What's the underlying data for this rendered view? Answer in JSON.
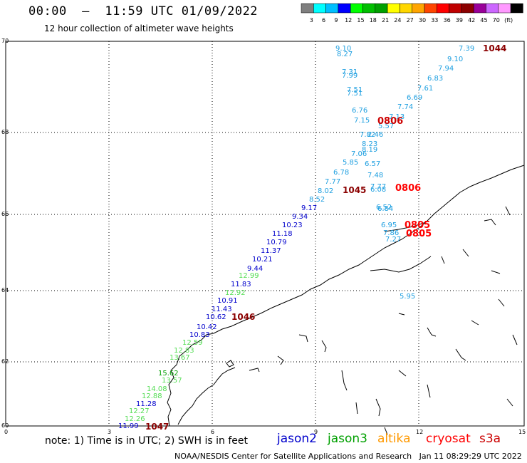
{
  "header": {
    "title": "00:00  –  11:59 UTC 01/09/2022",
    "subtitle": "12 hour collection of altimeter wave heights"
  },
  "legend": {
    "colors": [
      "#7f7f7f",
      "#00ffff",
      "#00bfff",
      "#0000ff",
      "#00ff00",
      "#00bf00",
      "#00a000",
      "#ffff00",
      "#ffd700",
      "#ffa500",
      "#ff4500",
      "#ff0000",
      "#bf0000",
      "#8b0000",
      "#990099",
      "#cc66ff",
      "#ff99ff",
      "#000000"
    ],
    "labels": [
      "3",
      "6",
      "9",
      "12",
      "15",
      "18",
      "21",
      "24",
      "27",
      "30",
      "33",
      "36",
      "39",
      "42",
      "45",
      "70",
      "(ft)"
    ]
  },
  "axes": {
    "lat_labels": [
      "70",
      "68",
      "66",
      "64",
      "62",
      "60"
    ],
    "lon_labels": [
      "0",
      "3",
      "6",
      "9",
      "12",
      "15"
    ]
  },
  "footer": {
    "note": "note:  1) Time is in UTC;  2) SWH is in feet",
    "satellites": [
      {
        "name": "jason2",
        "color": "#0000cc"
      },
      {
        "name": "jason3",
        "color": "#00a000"
      },
      {
        "name": "altika",
        "color": "#ff9900"
      },
      {
        "name": "cryosat",
        "color": "#ff0000"
      },
      {
        "name": "s3a",
        "color": "#cc0000"
      }
    ],
    "credit": "NOAA/NESDIS Center for Satellite Applications and Research   Jan 11 08:29:29 UTC 2022"
  },
  "observations": [
    {
      "text": "9.10",
      "color": "#1e9fe0"
    },
    {
      "text": "8.27",
      "color": "#1e9fe0"
    },
    {
      "text": "7.31",
      "color": "#1e9fe0"
    },
    {
      "text": "7.99",
      "color": "#1e9fe0"
    },
    {
      "text": "7.51",
      "color": "#1e9fe0"
    },
    {
      "text": "7.51",
      "color": "#1e9fe0"
    },
    {
      "text": "6.76",
      "color": "#1e9fe0"
    },
    {
      "text": "7.15",
      "color": "#1e9fe0"
    },
    {
      "text": "7.82",
      "color": "#1e9fe0"
    },
    {
      "text": "2.46",
      "color": "#1e9fe0"
    },
    {
      "text": "8.23",
      "color": "#1e9fe0"
    },
    {
      "text": "8.19",
      "color": "#1e9fe0"
    },
    {
      "text": "7.06",
      "color": "#1e9fe0"
    },
    {
      "text": "5.85",
      "color": "#1e9fe0"
    },
    {
      "text": "6.57",
      "color": "#1e9fe0"
    },
    {
      "text": "6.78",
      "color": "#1e9fe0"
    },
    {
      "text": "7.77",
      "color": "#1e9fe0"
    },
    {
      "text": "7.48",
      "color": "#1e9fe0"
    },
    {
      "text": "8.02",
      "color": "#1e9fe0"
    },
    {
      "text": "7.77",
      "color": "#1e9fe0"
    },
    {
      "text": "6.08",
      "color": "#1e9fe0"
    },
    {
      "text": "8.52",
      "color": "#1e9fe0"
    },
    {
      "text": "6.52",
      "color": "#1e9fe0"
    },
    {
      "text": "9.17",
      "color": "#0000cc"
    },
    {
      "text": "9.34",
      "color": "#0000cc"
    },
    {
      "text": "10.23",
      "color": "#0000cc"
    },
    {
      "text": "11.18",
      "color": "#0000cc"
    },
    {
      "text": "10.79",
      "color": "#0000cc"
    },
    {
      "text": "11.37",
      "color": "#0000cc"
    },
    {
      "text": "10.21",
      "color": "#0000cc"
    },
    {
      "text": "9.44",
      "color": "#0000cc"
    },
    {
      "text": "12.99",
      "color": "#55dd55"
    },
    {
      "text": "11.83",
      "color": "#0000cc"
    },
    {
      "text": "12.92",
      "color": "#55dd55"
    },
    {
      "text": "10.91",
      "color": "#0000cc"
    },
    {
      "text": "11.43",
      "color": "#0000cc"
    },
    {
      "text": "10.62",
      "color": "#0000cc"
    },
    {
      "text": "10.42",
      "color": "#0000cc"
    },
    {
      "text": "10.83",
      "color": "#0000cc"
    },
    {
      "text": "12.59",
      "color": "#55dd55"
    },
    {
      "text": "12.83",
      "color": "#55dd55"
    },
    {
      "text": "13.67",
      "color": "#55dd55"
    },
    {
      "text": "15.62",
      "color": "#00a000"
    },
    {
      "text": "13.57",
      "color": "#55dd55"
    },
    {
      "text": "14.08",
      "color": "#55dd55"
    },
    {
      "text": "12.88",
      "color": "#55dd55"
    },
    {
      "text": "11.28",
      "color": "#0000cc"
    },
    {
      "text": "12.27",
      "color": "#55dd55"
    },
    {
      "text": "12.26",
      "color": "#55dd55"
    },
    {
      "text": "11.99",
      "color": "#0000cc"
    },
    {
      "text": "9.10",
      "color": "#1e9fe0"
    },
    {
      "text": "7.39",
      "color": "#1e9fe0"
    },
    {
      "text": "7.94",
      "color": "#1e9fe0"
    },
    {
      "text": "6.83",
      "color": "#1e9fe0"
    },
    {
      "text": "7.61",
      "color": "#1e9fe0"
    },
    {
      "text": "6.69",
      "color": "#1e9fe0"
    },
    {
      "text": "7.74",
      "color": "#1e9fe0"
    },
    {
      "text": "7.13",
      "color": "#1e9fe0"
    },
    {
      "text": "5.57",
      "color": "#1e9fe0"
    },
    {
      "text": "6.95",
      "color": "#1e9fe0"
    },
    {
      "text": "7.86",
      "color": "#1e9fe0"
    },
    {
      "text": "7.27",
      "color": "#1e9fe0"
    },
    {
      "text": "6.84",
      "color": "#1e9fe0"
    },
    {
      "text": "5.95",
      "color": "#1e9fe0"
    },
    {
      "text": "1044",
      "color": "#8b0000"
    },
    {
      "text": "0806",
      "color": "#cc0000"
    },
    {
      "text": "1045",
      "color": "#8b0000"
    },
    {
      "text": "0806",
      "color": "#ff0000"
    },
    {
      "text": "0805",
      "color": "#ff0000"
    },
    {
      "text": "0805",
      "color": "#ff0000"
    },
    {
      "text": "1046",
      "color": "#8b0000"
    },
    {
      "text": "1047",
      "color": "#8b0000"
    }
  ]
}
